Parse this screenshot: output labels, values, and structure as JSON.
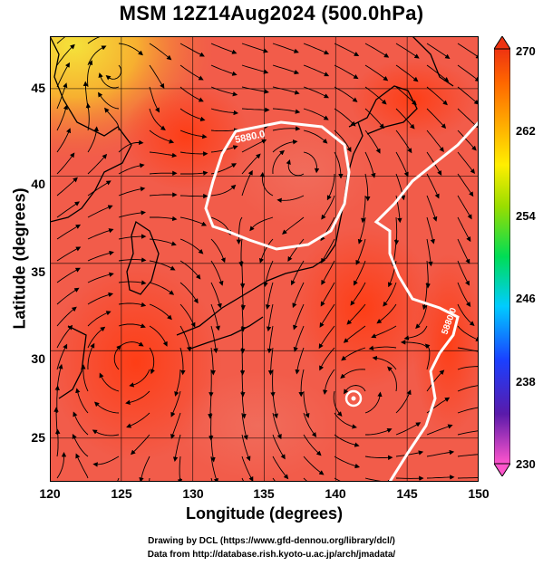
{
  "title": "MSM 12Z14Aug2024 (500.0hPa)",
  "map": {
    "lon_range": [
      120,
      150
    ],
    "lat_range": [
      22.5,
      48
    ],
    "x_ticks": [
      "120",
      "125",
      "130",
      "135",
      "140",
      "145",
      "150"
    ],
    "y_ticks": [
      "25",
      "30",
      "35",
      "40",
      "45"
    ],
    "xlabel": "Longitude (degrees)",
    "ylabel": "Latitude  (degrees)",
    "contour_labels": [
      "5880.0",
      "5880.0"
    ],
    "grid": true
  },
  "colorbar": {
    "ticks": [
      "270",
      "262",
      "254",
      "246",
      "238",
      "230"
    ],
    "min": 230,
    "max": 270,
    "colors": [
      "#ff55cc",
      "#2020aa",
      "#1a6dff",
      "#00ccff",
      "#00cc66",
      "#99dd00",
      "#ffee00",
      "#ffaa00",
      "#ff6600",
      "#ee3311"
    ]
  },
  "credits": {
    "line1": "Drawing by DCL (https://www.gfd-dennou.org/library/dcl/)",
    "line2": "Data from http://database.rish.kyoto-u.ac.jp/arch/jmadata/"
  }
}
